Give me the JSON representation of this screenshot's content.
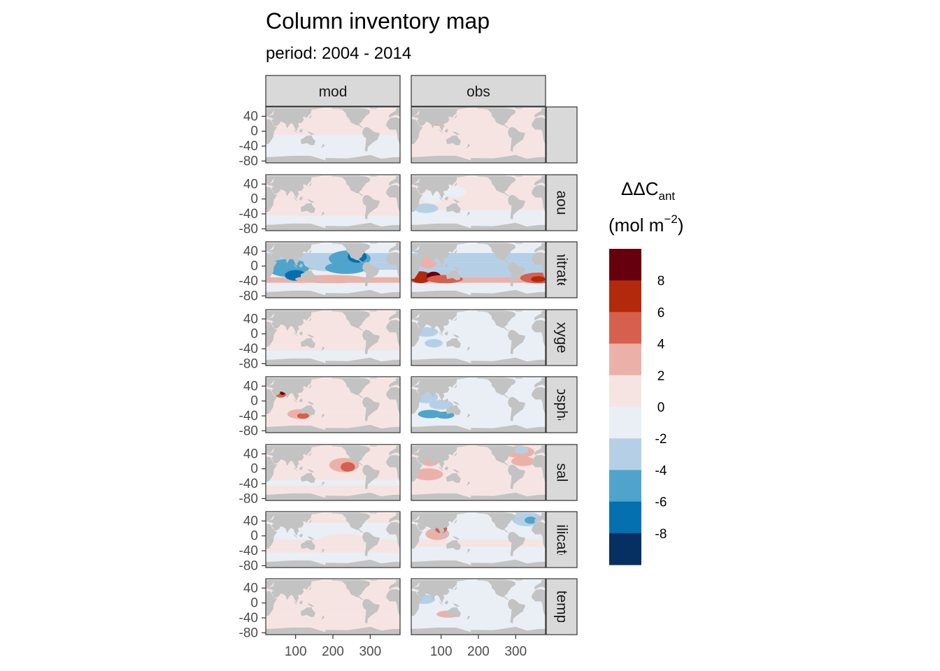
{
  "title": "Column inventory map",
  "subtitle": "period: 2004 - 2014",
  "columns": [
    "mod",
    "obs"
  ],
  "rows": [
    "",
    "aou",
    "nitrate",
    "oxygen",
    "phosphate",
    "sal",
    "silicate",
    "temp"
  ],
  "y_ticks": [
    "40",
    "0",
    "-40",
    "-80"
  ],
  "y_tick_values": [
    40,
    0,
    -40,
    -80
  ],
  "x_ticks": [
    "100",
    "200",
    "300"
  ],
  "x_tick_values": [
    100,
    200,
    300
  ],
  "lon_range": [
    20,
    380
  ],
  "lat_range": [
    -85,
    65
  ],
  "legend": {
    "title_main": "ΔΔC",
    "title_sub": "ant",
    "unit_pre": "(mol m",
    "unit_sup": "−2",
    "unit_post": ")",
    "ticks": [
      "8",
      "6",
      "4",
      "2",
      "0",
      "-2",
      "-4",
      "-6",
      "-8"
    ],
    "tick_values": [
      8,
      6,
      4,
      2,
      0,
      -2,
      -4,
      -6,
      -8
    ],
    "colors": [
      "#67000d",
      "#b2290c",
      "#d6604d",
      "#ebb1a9",
      "#f6e4e3",
      "#e9eff5",
      "#b5d0e6",
      "#4fa4cc",
      "#0570b0",
      "#053061"
    ]
  },
  "colors": {
    "panel_background": "#e9eff5",
    "land": "#c3c3c3",
    "strip": "#d9d9d9"
  }
}
